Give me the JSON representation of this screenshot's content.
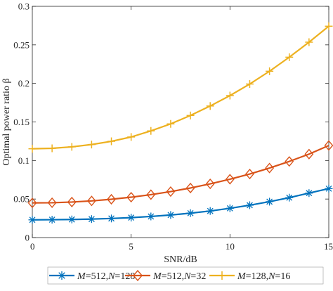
{
  "chart_data": {
    "type": "line",
    "xlabel": "SNR/dB",
    "ylabel": "Optimal power ratio β",
    "xlim": [
      0,
      15
    ],
    "ylim": [
      0,
      0.3
    ],
    "xticks": [
      0,
      5,
      10,
      15
    ],
    "xtick_labels": [
      "0",
      "5",
      "10",
      "15"
    ],
    "yticks": [
      0,
      0.05,
      0.1,
      0.15,
      0.2,
      0.25,
      0.3
    ],
    "ytick_labels": [
      "0",
      "0.05",
      "0.1",
      "0.15",
      "0.2",
      "0.25",
      "0.3"
    ],
    "grid": false,
    "legend_position": "bottom",
    "x": [
      0,
      1,
      2,
      3,
      4,
      5,
      6,
      7,
      8,
      9,
      10,
      11,
      12,
      13,
      14,
      15
    ],
    "series": [
      {
        "name": "M=512,N=128",
        "legend": {
          "m_symbol": "M",
          "m_value": "=512,",
          "n_symbol": "N",
          "n_value": "=128"
        },
        "color": "#0072BD",
        "marker": "asterisk",
        "values": [
          0.023,
          0.0232,
          0.0235,
          0.024,
          0.0248,
          0.0259,
          0.0274,
          0.0293,
          0.0317,
          0.0345,
          0.038,
          0.042,
          0.0466,
          0.0518,
          0.0577,
          0.0635
        ]
      },
      {
        "name": "M=512,N=32",
        "legend": {
          "m_symbol": "M",
          "m_value": "=512,",
          "n_symbol": "N",
          "n_value": "=32"
        },
        "color": "#D95319",
        "marker": "diamond",
        "values": [
          0.045,
          0.0452,
          0.0461,
          0.0476,
          0.0497,
          0.0524,
          0.0557,
          0.0597,
          0.0643,
          0.0697,
          0.0757,
          0.0825,
          0.0902,
          0.0988,
          0.1083,
          0.1195
        ]
      },
      {
        "name": "M=128,N=16",
        "legend": {
          "m_symbol": "M",
          "m_value": "=128,",
          "n_symbol": "N",
          "n_value": "=16"
        },
        "color": "#EDB120",
        "marker": "plus",
        "values": [
          0.1152,
          0.1158,
          0.1177,
          0.1207,
          0.1249,
          0.1305,
          0.1384,
          0.1475,
          0.1584,
          0.1707,
          0.1842,
          0.1992,
          0.2158,
          0.234,
          0.2535,
          0.2742
        ]
      }
    ]
  }
}
